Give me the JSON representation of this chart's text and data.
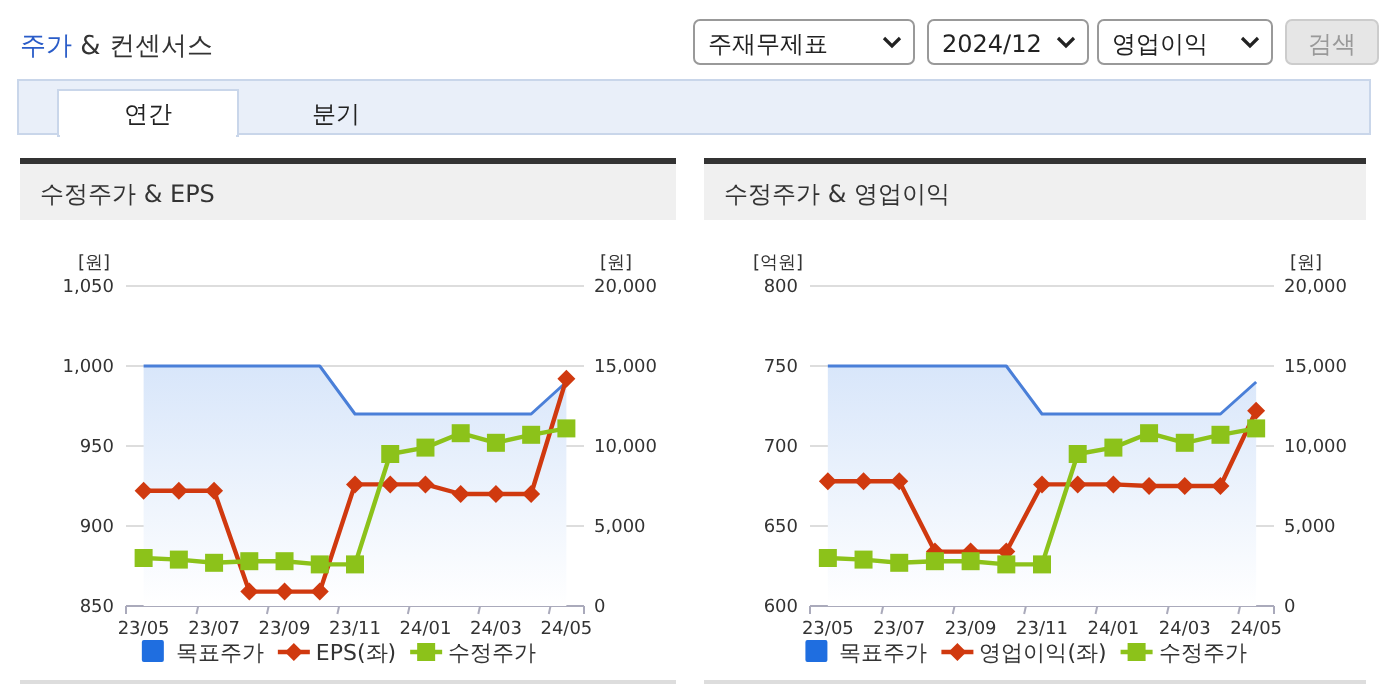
{
  "chart_data": [
    {
      "type": "other",
      "title": "주가 & 컨센서스",
      "annotations": [
        "주재무제표",
        "2024/12",
        "영업이익",
        "검색",
        "연간",
        "분기"
      ]
    },
    {
      "type": "line",
      "title": "수정주가 & EPS",
      "ylabel": "[원]",
      "y2label": "[원]",
      "categories": [
        "23/05",
        null,
        "23/07",
        null,
        "23/09",
        null,
        "23/11",
        null,
        "24/01",
        null,
        "24/03",
        null,
        "24/05"
      ],
      "ylim": [
        850,
        1050
      ],
      "yticks": [
        {
          "value": 850,
          "label": "850"
        },
        {
          "value": 900,
          "label": "900"
        },
        {
          "value": 950,
          "label": "950"
        },
        {
          "value": 1000,
          "label": "1,000"
        },
        {
          "value": 1050,
          "label": "1,050"
        }
      ],
      "y2lim": [
        0,
        20000
      ],
      "y2ticks": [
        {
          "value": 0,
          "label": "0"
        },
        {
          "value": 5000,
          "label": "5,000"
        },
        {
          "value": 10000,
          "label": "10,000"
        },
        {
          "value": 15000,
          "label": "15,000"
        },
        {
          "value": 20000,
          "label": "20,000"
        }
      ],
      "grid": "y",
      "legend": "bottom",
      "series": [
        {
          "name": "목표주가",
          "type": "area",
          "axis": "y2",
          "color": "#4a7fd8",
          "values": [
            15000,
            15000,
            15000,
            15000,
            15000,
            15000,
            12000,
            12000,
            12000,
            12000,
            12000,
            12000,
            14000
          ]
        },
        {
          "name": "EPS(좌)",
          "type": "line",
          "color": "#d0390f",
          "marker": "diamond",
          "values": [
            922,
            922,
            922,
            859,
            859,
            859,
            926,
            926,
            926,
            920,
            920,
            920,
            992
          ]
        },
        {
          "name": "수정주가",
          "type": "line",
          "axis": "y2",
          "color": "#8cc21a",
          "marker": "square",
          "values": [
            3000,
            2900,
            2700,
            2800,
            2800,
            2600,
            2600,
            9500,
            9900,
            10800,
            10200,
            10700,
            11100
          ]
        }
      ]
    },
    {
      "type": "line",
      "title": "수정주가 & 영업이익",
      "ylabel": "[억원]",
      "y2label": "[원]",
      "categories": [
        "23/05",
        null,
        "23/07",
        null,
        "23/09",
        null,
        "23/11",
        null,
        "24/01",
        null,
        "24/03",
        null,
        "24/05"
      ],
      "ylim": [
        600,
        800
      ],
      "yticks": [
        600,
        650,
        700,
        750,
        800
      ],
      "y2lim": [
        0,
        20000
      ],
      "y2ticks": [
        {
          "value": 0,
          "label": "0"
        },
        {
          "value": 5000,
          "label": "5,000"
        },
        {
          "value": 10000,
          "label": "10,000"
        },
        {
          "value": 15000,
          "label": "15,000"
        },
        {
          "value": 20000,
          "label": "20,000"
        }
      ],
      "grid": "y",
      "legend": "bottom",
      "series": [
        {
          "name": "목표주가",
          "type": "area",
          "axis": "y2",
          "color": "#4a7fd8",
          "values": [
            15000,
            15000,
            15000,
            15000,
            15000,
            15000,
            12000,
            12000,
            12000,
            12000,
            12000,
            12000,
            14000
          ]
        },
        {
          "name": "영업이익(좌)",
          "type": "line",
          "color": "#d0390f",
          "marker": "diamond",
          "values": [
            678,
            678,
            678,
            634,
            634,
            634,
            676,
            676,
            676,
            675,
            675,
            675,
            722
          ]
        },
        {
          "name": "수정주가",
          "type": "line",
          "axis": "y2",
          "color": "#8cc21a",
          "marker": "square",
          "values": [
            3000,
            2900,
            2700,
            2800,
            2800,
            2600,
            2600,
            9500,
            9900,
            10800,
            10200,
            10700,
            11100
          ]
        }
      ]
    }
  ]
}
